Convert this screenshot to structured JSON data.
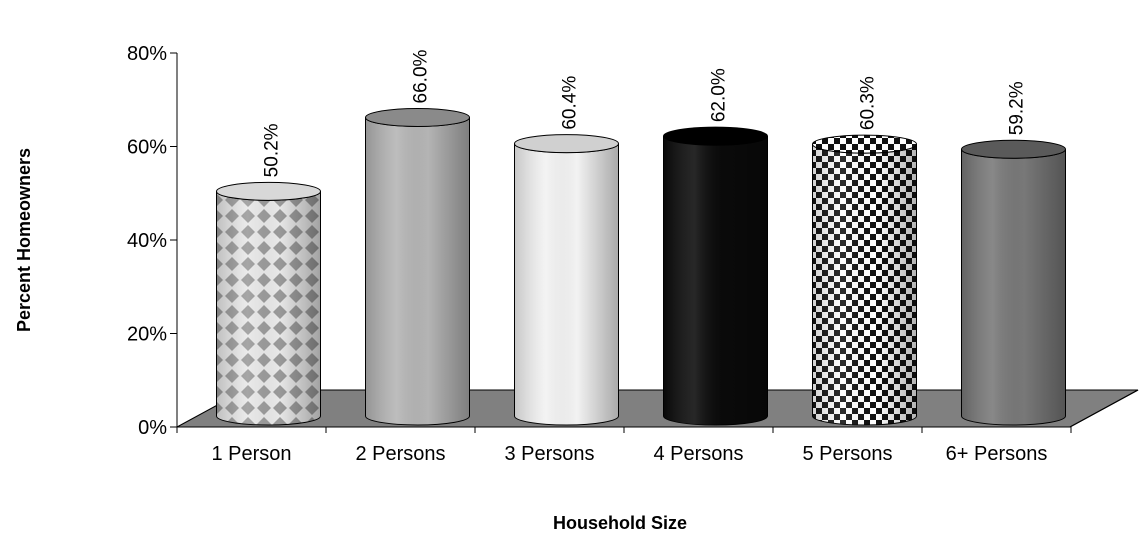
{
  "chart_data": {
    "type": "bar",
    "style": "3d-cylinder",
    "categories": [
      "1 Person",
      "2 Persons",
      "3 Persons",
      "4 Persons",
      "5 Persons",
      "6+ Persons"
    ],
    "values": [
      50.2,
      66.0,
      60.4,
      62.0,
      60.3,
      59.2
    ],
    "data_labels": [
      "50.2%",
      "66.0%",
      "60.4%",
      "62.0%",
      "60.3%",
      "59.2%"
    ],
    "title": "",
    "xlabel": "Household Size",
    "ylabel": "Percent Homeowners",
    "ylim": [
      0,
      80
    ],
    "yticks": [
      "0%",
      "20%",
      "40%",
      "60%",
      "80%"
    ],
    "grid": false,
    "legend": "none",
    "bar_fills": [
      "diamond-pattern",
      "light-gray",
      "white",
      "black",
      "checkerboard",
      "dark-gray"
    ]
  },
  "colors": {
    "floor": "#808080",
    "bar_light_gray": "#b4b4b4",
    "bar_white": "#f2f2f2",
    "bar_black": "#0a0a0a",
    "bar_dark_gray": "#787878"
  }
}
